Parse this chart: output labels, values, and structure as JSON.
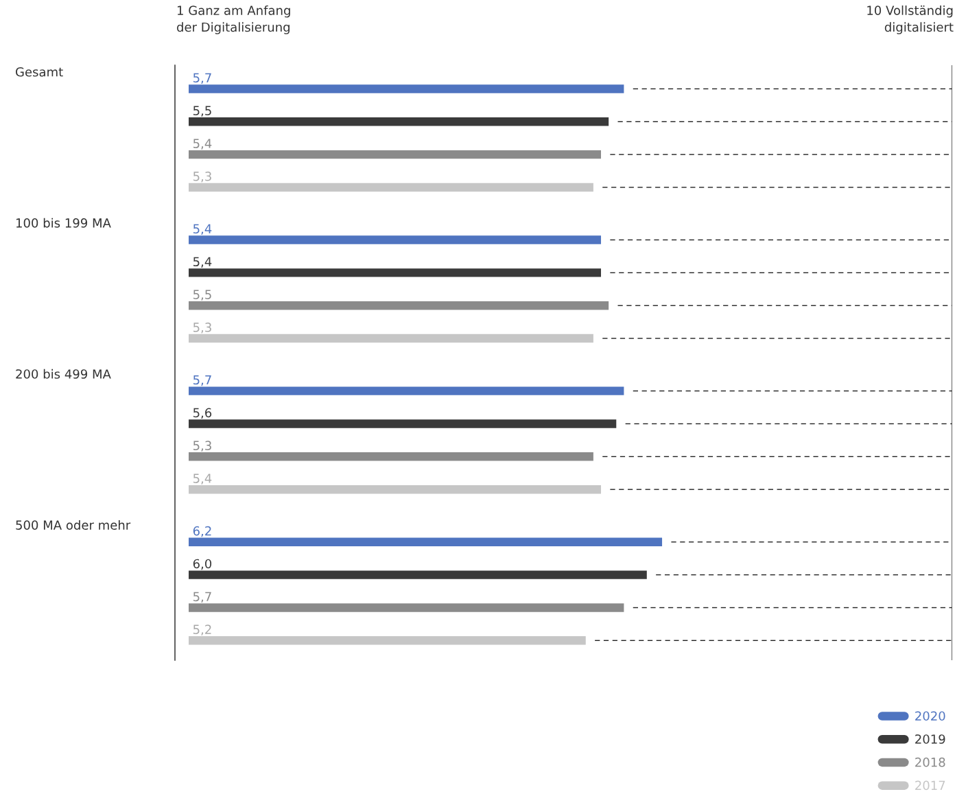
{
  "chart_data": {
    "type": "bar",
    "orientation": "horizontal",
    "categories": [
      "Gesamt",
      "100 bis 199 MA",
      "200 bis 499 MA",
      "500 MA oder mehr"
    ],
    "series": [
      {
        "name": "2020",
        "color": "#4f74c0",
        "values": [
          5.7,
          5.4,
          5.7,
          6.2
        ],
        "value_labels": [
          "5,7",
          "5,4",
          "5,7",
          "6,2"
        ]
      },
      {
        "name": "2019",
        "color": "#3a3a3a",
        "values": [
          5.5,
          5.4,
          5.6,
          6.0
        ],
        "value_labels": [
          "5,5",
          "5,4",
          "5,6",
          "6,0"
        ]
      },
      {
        "name": "2018",
        "color": "#8a8a8a",
        "values": [
          5.4,
          5.5,
          5.3,
          5.7
        ],
        "value_labels": [
          "5,4",
          "5,5",
          "5,3",
          "5,7"
        ]
      },
      {
        "name": "2017",
        "color": "#c6c6c6",
        "values": [
          5.3,
          5.3,
          5.4,
          5.2
        ],
        "value_labels": [
          "5,3",
          "5,3",
          "5,4",
          "5,2"
        ]
      }
    ],
    "ref_lines": [
      {
        "axis": "x",
        "value": 10,
        "label": "10 Vollständig\ndigitalisiert"
      }
    ],
    "annotations": [
      "1 Ganz am Anfang\nder Digitalisierung"
    ],
    "legend": "bottom right"
  }
}
